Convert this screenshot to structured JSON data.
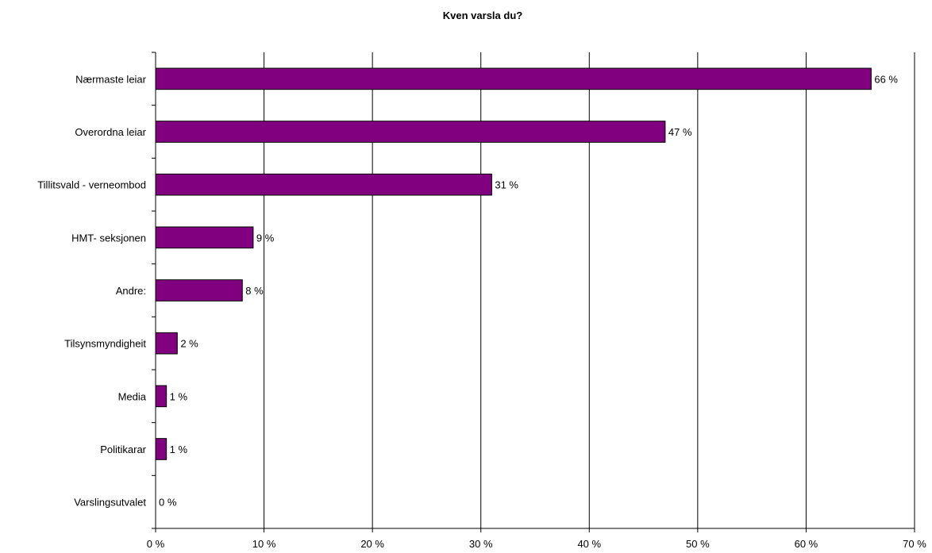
{
  "chart_data": {
    "type": "bar",
    "orientation": "horizontal",
    "title": "Kven varsla du?",
    "categories": [
      "Nærmaste leiar",
      "Overordna leiar",
      "Tillitsvald - verneombod",
      "HMT- seksjonen",
      "Andre:",
      "Tilsynsmyndigheit",
      "Media",
      "Politikarar",
      "Varslingsutvalet"
    ],
    "values": [
      66,
      47,
      31,
      9,
      8,
      2,
      1,
      1,
      0
    ],
    "data_labels": [
      "66 %",
      "47 %",
      "31 %",
      "9 %",
      "8 %",
      "2 %",
      "1 %",
      "1 %",
      "0 %"
    ],
    "xlim": [
      0,
      70
    ],
    "x_ticks": [
      0,
      10,
      20,
      30,
      40,
      50,
      60,
      70
    ],
    "x_tick_labels": [
      "0 %",
      "10 %",
      "20 %",
      "30 %",
      "40 %",
      "50 %",
      "60 %",
      "70 %"
    ],
    "xlabel": "",
    "ylabel": "",
    "grid": "vertical",
    "legend": "none",
    "bar_color": "#800080",
    "bar_edge_color": "#000000"
  }
}
